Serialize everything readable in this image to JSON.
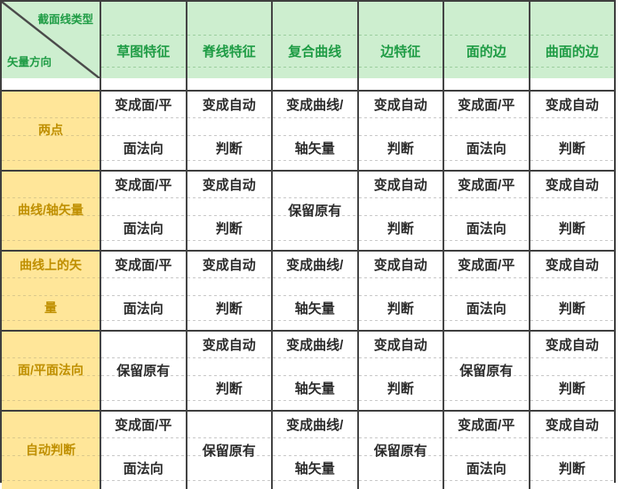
{
  "table": {
    "corner": {
      "top_label": "截面线类型",
      "bottom_label": "矢量方向"
    },
    "columns": [
      "草图特征",
      "脊线特征",
      "复合曲线",
      "边特征",
      "面的边",
      "曲面的边"
    ],
    "rows": [
      {
        "label": [
          "两点"
        ],
        "cells": [
          [
            "变成面/平",
            "面法向"
          ],
          [
            "变成自动",
            "判断"
          ],
          [
            "变成曲线/",
            "轴矢量"
          ],
          [
            "变成自动",
            "判断"
          ],
          [
            "变成面/平",
            "面法向"
          ],
          [
            "变成自动",
            "判断"
          ]
        ]
      },
      {
        "label": [
          "曲线/轴矢量"
        ],
        "cells": [
          [
            "变成面/平",
            "面法向"
          ],
          [
            "变成自动",
            "判断"
          ],
          [
            "保留原有"
          ],
          [
            "变成自动",
            "判断"
          ],
          [
            "变成面/平",
            "面法向"
          ],
          [
            "变成自动",
            "判断"
          ]
        ]
      },
      {
        "label": [
          "曲线上的矢",
          "量"
        ],
        "cells": [
          [
            "变成面/平",
            "面法向"
          ],
          [
            "变成自动",
            "判断"
          ],
          [
            "变成曲线/",
            "轴矢量"
          ],
          [
            "变成自动",
            "判断"
          ],
          [
            "变成面/平",
            "面法向"
          ],
          [
            "变成自动",
            "判断"
          ]
        ]
      },
      {
        "label": [
          "面/平面法向"
        ],
        "cells": [
          [
            "保留原有"
          ],
          [
            "变成自动",
            "判断"
          ],
          [
            "变成曲线/",
            "轴矢量"
          ],
          [
            "变成自动",
            "判断"
          ],
          [
            "保留原有"
          ],
          [
            "变成自动",
            "判断"
          ]
        ]
      },
      {
        "label": [
          "自动判断"
        ],
        "cells": [
          [
            "变成面/平",
            "面法向"
          ],
          [
            "保留原有"
          ],
          [
            "变成曲线/",
            "轴矢量"
          ],
          [
            "保留原有"
          ],
          [
            "变成面/平",
            "面法向"
          ],
          [
            "变成自动",
            "判断"
          ]
        ]
      }
    ],
    "colors": {
      "header_bg": "#cdeecf",
      "header_text": "#1f9c45",
      "row_label_bg": "#ffe699",
      "row_label_text": "#bf8f00",
      "grid_dark": "#3f3f3f",
      "cell_text": "#2b2b2b"
    }
  }
}
